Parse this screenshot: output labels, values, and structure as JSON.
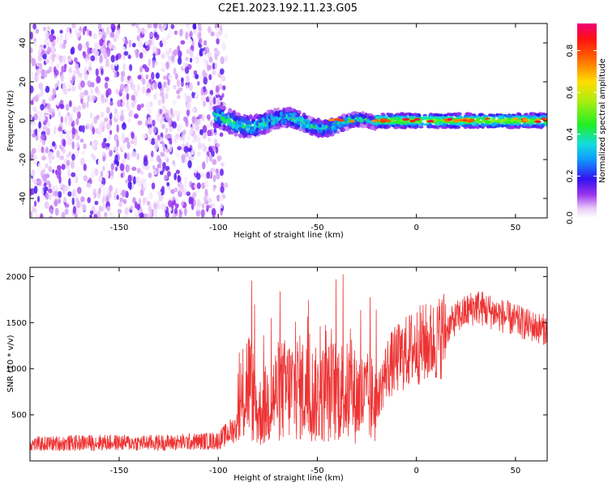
{
  "figure_title": "C2E1.2023.192.11.23.G05",
  "colors": {
    "snr_line": "#ee3333",
    "axis": "#000000",
    "background": "#ffffff"
  },
  "chart_data": [
    {
      "type": "heatmap",
      "title": "C2E1.2023.192.11.23.G05",
      "xlabel": "Height of straight line (km)",
      "ylabel": "Frequency (Hz)",
      "xlim": [
        -195,
        66
      ],
      "ylim": [
        -50,
        50
      ],
      "x_ticks": [
        -150,
        -100,
        -50,
        0,
        50
      ],
      "y_ticks": [
        -40,
        -20,
        0,
        20,
        40
      ],
      "grid": false,
      "colorbar": {
        "label": "Normalized spectral amplitude",
        "range": [
          0,
          0.93
        ],
        "ticks": [
          0.0,
          0.2,
          0.4,
          0.6,
          0.8
        ],
        "colormap": "rainbow (white-purple-blue-cyan-green-yellow-red-magenta)"
      },
      "regions": [
        {
          "x_range": [
            -195,
            -102
          ],
          "freq_range": [
            -50,
            50
          ],
          "amplitude": 0.08,
          "description": "broadband noise"
        },
        {
          "x_range": [
            -102,
            -20
          ],
          "freq_center": 0,
          "freq_halfwidth": 6,
          "amplitude": 0.3,
          "description": "wavering signal band"
        },
        {
          "x_range": [
            -20,
            66
          ],
          "freq_center": 0,
          "freq_halfwidth": 2,
          "amplitude": 0.5,
          "description": "steady signal band with peaks up to 0.9"
        }
      ]
    },
    {
      "type": "line",
      "xlabel": "Height of straight line (km)",
      "ylabel": "SNR (10 * v/v)",
      "xlim": [
        -195,
        66
      ],
      "ylim": [
        0,
        2100
      ],
      "x_ticks": [
        -150,
        -100,
        -50,
        0,
        50
      ],
      "y_ticks": [
        500,
        1000,
        1500,
        2000
      ],
      "grid": false,
      "series": [
        {
          "x": [
            -195,
            -180,
            -160,
            -140,
            -120,
            -100,
            -90,
            -85,
            -80,
            -70,
            -60,
            -50,
            -40,
            -30,
            -20,
            -15,
            -10,
            0,
            10,
            20,
            30,
            40,
            50,
            60,
            66
          ],
          "y": [
            180,
            190,
            200,
            195,
            200,
            220,
            380,
            900,
            500,
            750,
            800,
            700,
            780,
            700,
            650,
            1000,
            1100,
            1250,
            1300,
            1550,
            1680,
            1600,
            1520,
            1450,
            1420
          ]
        }
      ]
    }
  ]
}
